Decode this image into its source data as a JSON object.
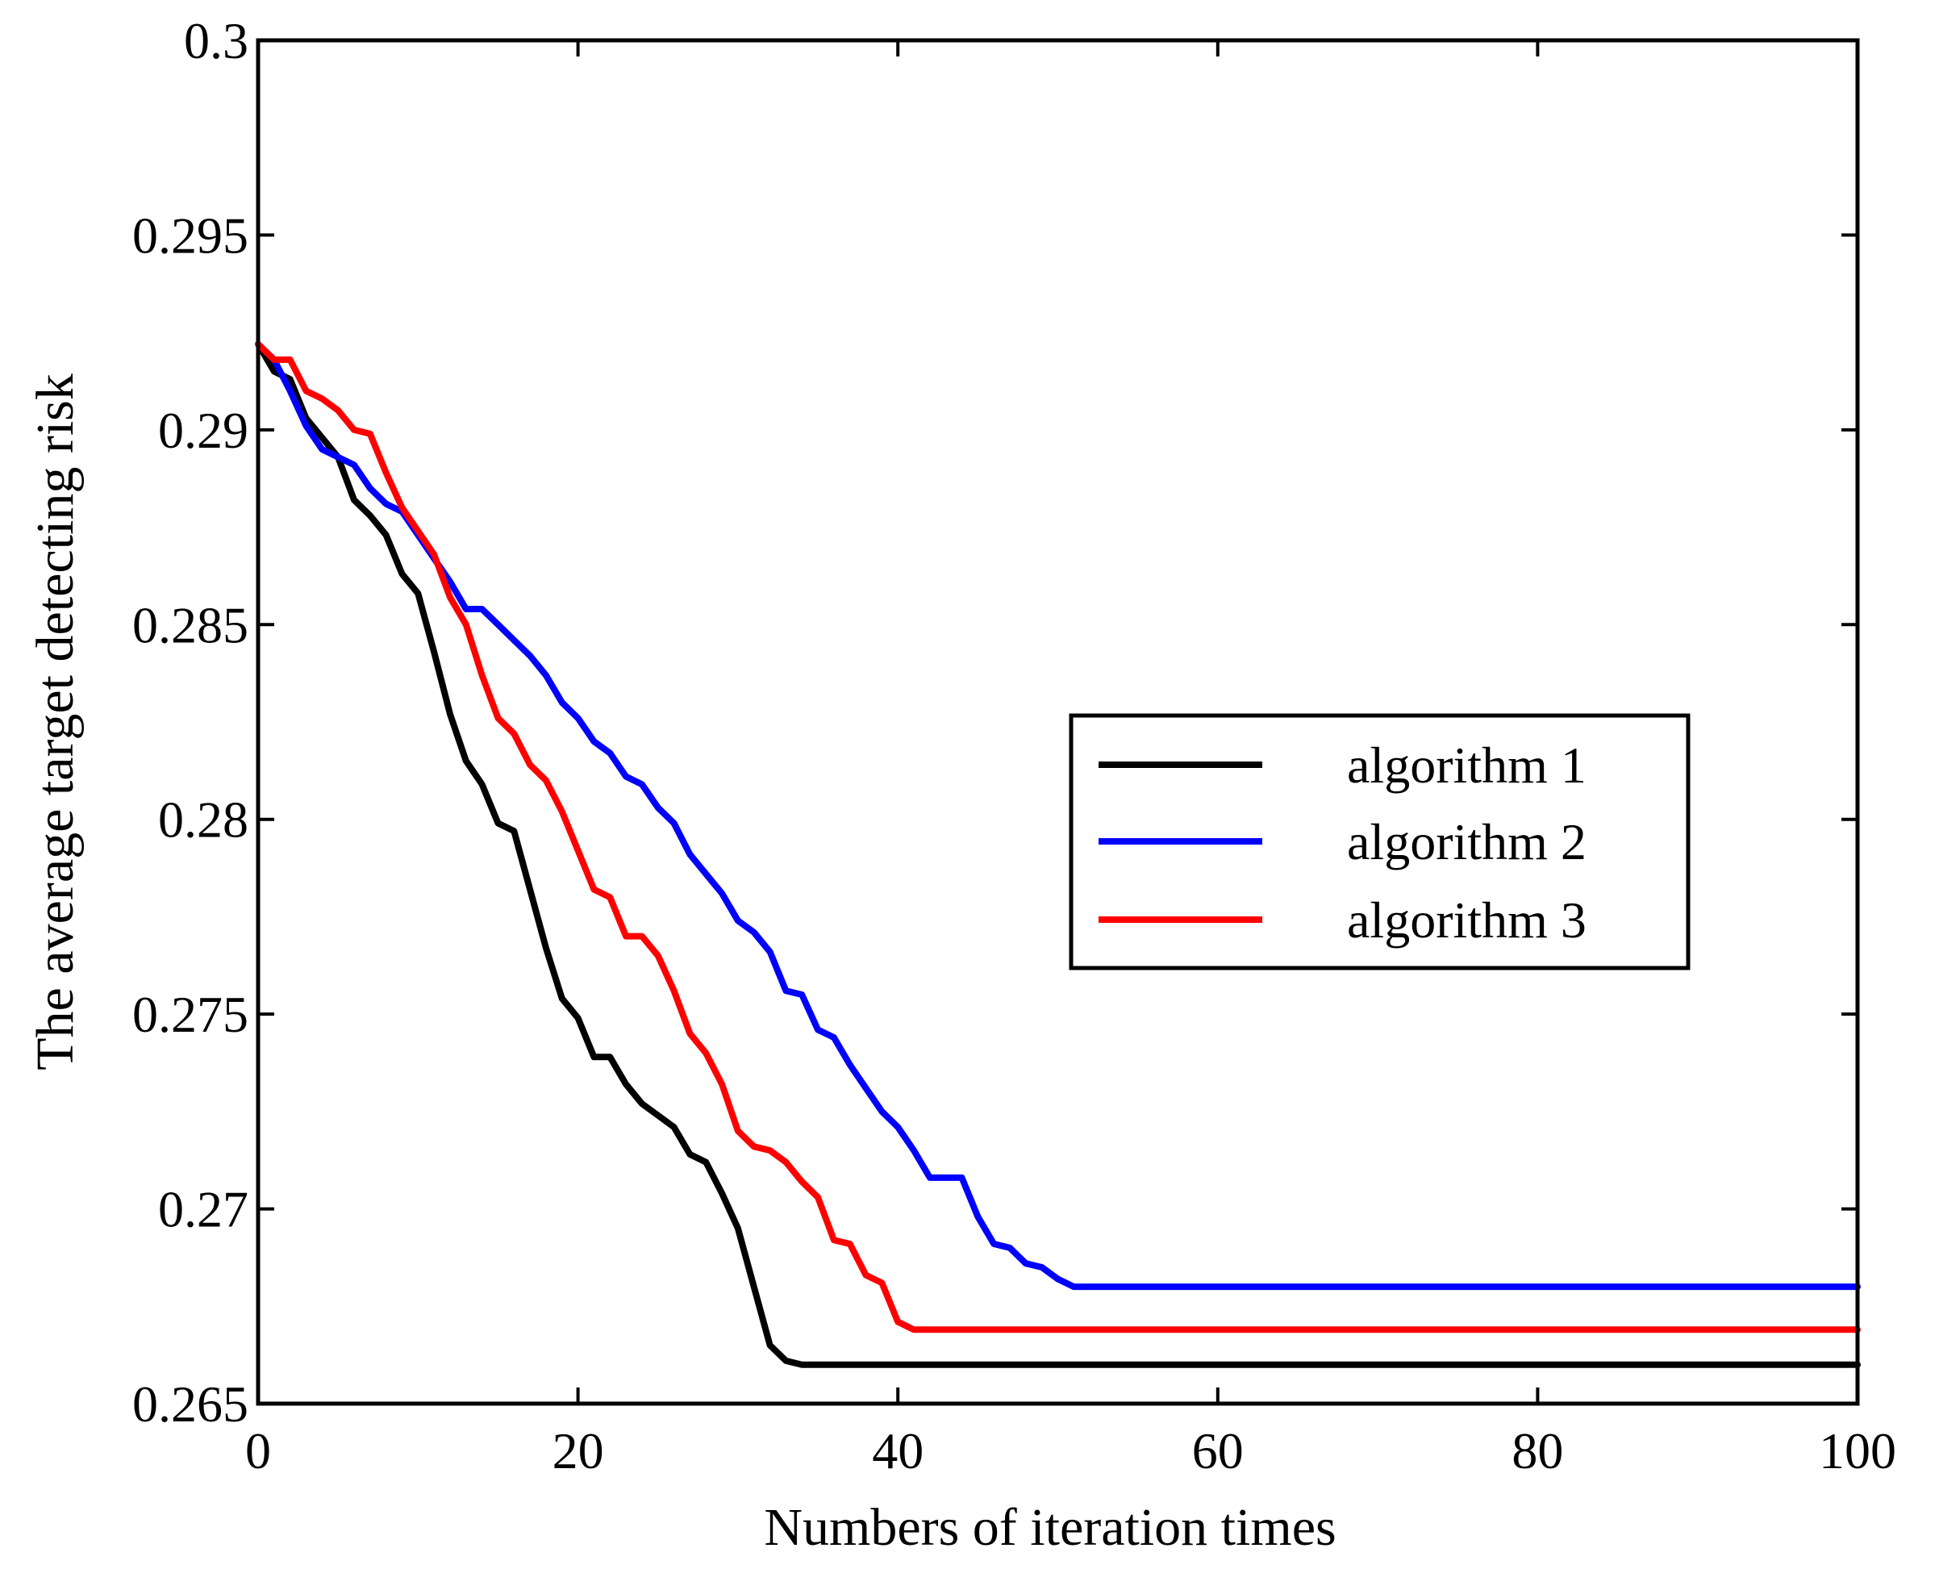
{
  "chart_data": {
    "type": "line",
    "title": "",
    "xlabel": "Numbers of iteration times",
    "ylabel": "The average target detecting risk",
    "xlim": [
      0,
      100
    ],
    "ylim": [
      0.265,
      0.3
    ],
    "x_ticks": [
      0,
      20,
      40,
      60,
      80,
      100
    ],
    "x_tick_labels": [
      "0",
      "20",
      "40",
      "60",
      "80",
      "100"
    ],
    "y_ticks": [
      0.265,
      0.27,
      0.275,
      0.28,
      0.285,
      0.29,
      0.295,
      0.3
    ],
    "y_tick_labels": [
      "0.265",
      "0.27",
      "0.275",
      "0.28",
      "0.285",
      "0.29",
      "0.295",
      "0.3"
    ],
    "grid": false,
    "legend_position": "center-right",
    "series": [
      {
        "name": "algorithm 1",
        "color": "#000000",
        "points": [
          [
            0,
            0.2922
          ],
          [
            1,
            0.2915
          ],
          [
            2,
            0.2913
          ],
          [
            3,
            0.2903
          ],
          [
            4,
            0.2898
          ],
          [
            5,
            0.2893
          ],
          [
            6,
            0.2882
          ],
          [
            7,
            0.2878
          ],
          [
            8,
            0.2873
          ],
          [
            9,
            0.2863
          ],
          [
            10,
            0.2858
          ],
          [
            11,
            0.2843
          ],
          [
            12,
            0.2827
          ],
          [
            13,
            0.2815
          ],
          [
            14,
            0.2809
          ],
          [
            15,
            0.2799
          ],
          [
            16,
            0.2797
          ],
          [
            17,
            0.2782
          ],
          [
            18,
            0.2767
          ],
          [
            19,
            0.2754
          ],
          [
            20,
            0.2749
          ],
          [
            21,
            0.2739
          ],
          [
            22,
            0.2739
          ],
          [
            23,
            0.2732
          ],
          [
            24,
            0.2727
          ],
          [
            25,
            0.2724
          ],
          [
            26,
            0.2721
          ],
          [
            27,
            0.2714
          ],
          [
            28,
            0.2712
          ],
          [
            29,
            0.2704
          ],
          [
            30,
            0.2695
          ],
          [
            31,
            0.268
          ],
          [
            32,
            0.2665
          ],
          [
            33,
            0.2661
          ],
          [
            34,
            0.266
          ],
          [
            100,
            0.266
          ]
        ]
      },
      {
        "name": "algorithm 2",
        "color": "#0000ff",
        "points": [
          [
            0,
            0.2922
          ],
          [
            1,
            0.2918
          ],
          [
            2,
            0.291
          ],
          [
            3,
            0.2901
          ],
          [
            4,
            0.2895
          ],
          [
            5,
            0.2893
          ],
          [
            6,
            0.2891
          ],
          [
            7,
            0.2885
          ],
          [
            8,
            0.2881
          ],
          [
            9,
            0.2879
          ],
          [
            10,
            0.2873
          ],
          [
            11,
            0.2867
          ],
          [
            12,
            0.2861
          ],
          [
            13,
            0.2854
          ],
          [
            14,
            0.2854
          ],
          [
            15,
            0.285
          ],
          [
            16,
            0.2846
          ],
          [
            17,
            0.2842
          ],
          [
            18,
            0.2837
          ],
          [
            19,
            0.283
          ],
          [
            20,
            0.2826
          ],
          [
            21,
            0.282
          ],
          [
            22,
            0.2817
          ],
          [
            23,
            0.2811
          ],
          [
            24,
            0.2809
          ],
          [
            25,
            0.2803
          ],
          [
            26,
            0.2799
          ],
          [
            27,
            0.2791
          ],
          [
            28,
            0.2786
          ],
          [
            29,
            0.2781
          ],
          [
            30,
            0.2774
          ],
          [
            31,
            0.2771
          ],
          [
            32,
            0.2766
          ],
          [
            33,
            0.2756
          ],
          [
            34,
            0.2755
          ],
          [
            35,
            0.2746
          ],
          [
            36,
            0.2744
          ],
          [
            37,
            0.2737
          ],
          [
            38,
            0.2731
          ],
          [
            39,
            0.2725
          ],
          [
            40,
            0.2721
          ],
          [
            41,
            0.2715
          ],
          [
            42,
            0.2708
          ],
          [
            43,
            0.2708
          ],
          [
            44,
            0.2708
          ],
          [
            45,
            0.2698
          ],
          [
            46,
            0.2691
          ],
          [
            47,
            0.269
          ],
          [
            48,
            0.2686
          ],
          [
            49,
            0.2685
          ],
          [
            50,
            0.2682
          ],
          [
            51,
            0.268
          ],
          [
            100,
            0.268
          ]
        ]
      },
      {
        "name": "algorithm 3",
        "color": "#ff0000",
        "points": [
          [
            0,
            0.2922
          ],
          [
            1,
            0.2918
          ],
          [
            2,
            0.2918
          ],
          [
            3,
            0.291
          ],
          [
            4,
            0.2908
          ],
          [
            5,
            0.2905
          ],
          [
            6,
            0.29
          ],
          [
            7,
            0.2899
          ],
          [
            8,
            0.2889
          ],
          [
            9,
            0.288
          ],
          [
            10,
            0.2874
          ],
          [
            11,
            0.2868
          ],
          [
            12,
            0.2857
          ],
          [
            13,
            0.285
          ],
          [
            14,
            0.2837
          ],
          [
            15,
            0.2826
          ],
          [
            16,
            0.2822
          ],
          [
            17,
            0.2814
          ],
          [
            18,
            0.281
          ],
          [
            19,
            0.2802
          ],
          [
            20,
            0.2792
          ],
          [
            21,
            0.2782
          ],
          [
            22,
            0.278
          ],
          [
            23,
            0.277
          ],
          [
            24,
            0.277
          ],
          [
            25,
            0.2765
          ],
          [
            26,
            0.2756
          ],
          [
            27,
            0.2745
          ],
          [
            28,
            0.274
          ],
          [
            29,
            0.2732
          ],
          [
            30,
            0.272
          ],
          [
            31,
            0.2716
          ],
          [
            32,
            0.2715
          ],
          [
            33,
            0.2712
          ],
          [
            34,
            0.2707
          ],
          [
            35,
            0.2703
          ],
          [
            36,
            0.2692
          ],
          [
            37,
            0.2691
          ],
          [
            38,
            0.2683
          ],
          [
            39,
            0.2681
          ],
          [
            40,
            0.2671
          ],
          [
            41,
            0.2669
          ],
          [
            100,
            0.2669
          ]
        ]
      }
    ]
  }
}
